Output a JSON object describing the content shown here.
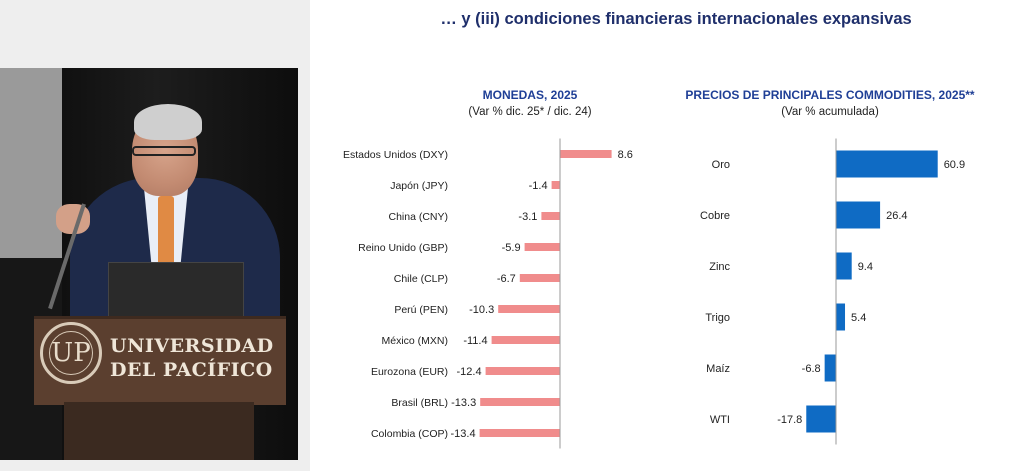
{
  "video": {
    "brand_line1": "UNIVERSIDAD",
    "brand_line2": "DEL PACÍFICO",
    "seal_glyph": "UP"
  },
  "slide": {
    "title": "… y (iii) condiciones financieras internacionales expansivas"
  },
  "chart_data": [
    {
      "type": "bar",
      "orientation": "horizontal",
      "title": "MONEDAS, 2025",
      "subtitle": "(Var %  dic. 25* / dic. 24)",
      "categories": [
        "Estados Unidos (DXY)",
        "Japón (JPY)",
        "China (CNY)",
        "Reino Unido (GBP)",
        "Chile (CLP)",
        "Perú (PEN)",
        "México (MXN)",
        "Eurozona (EUR)",
        "Brasil (BRL)",
        "Colombia (COP)"
      ],
      "values": [
        8.6,
        -1.4,
        -3.1,
        -5.9,
        -6.7,
        -10.3,
        -11.4,
        -12.4,
        -13.3,
        -13.4
      ],
      "data_labels": [
        "8.6",
        "-1.4",
        "-3.1",
        "-5.9",
        "-6.7",
        "-10.3",
        "-11.4",
        "-12.4",
        "-13.3",
        "-13.4"
      ],
      "xlim": [
        -14,
        10
      ],
      "color": "#f08c8c",
      "axis_color": "#999999"
    },
    {
      "type": "bar",
      "orientation": "horizontal",
      "title": "PRECIOS DE PRINCIPALES COMMODITIES, 2025**",
      "subtitle": "(Var %  acumulada)",
      "categories": [
        "Oro",
        "Cobre",
        "Zinc",
        "Trigo",
        "Maíz",
        "WTI"
      ],
      "values": [
        60.9,
        26.4,
        9.4,
        5.4,
        -6.8,
        -17.8
      ],
      "data_labels": [
        "60.9",
        "26.4",
        "9.4",
        "5.4",
        "-6.8",
        "-17.8"
      ],
      "xlim": [
        -20,
        65
      ],
      "color": "#0f6bc4",
      "axis_color": "#999999"
    }
  ]
}
